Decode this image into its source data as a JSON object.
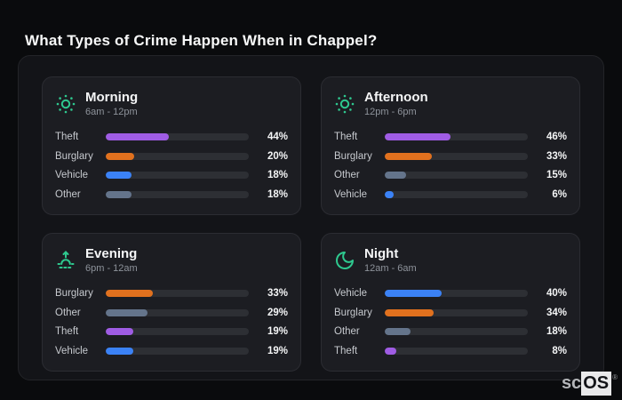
{
  "page_title": "What Types of Crime Happen When in Chappel?",
  "brand": {
    "prefix": "sc",
    "suffix": "OS",
    "registered_mark": "®"
  },
  "colors": {
    "accent_green": "#2ec98f",
    "bar_track": "#2d2f34",
    "background": "#0a0b0d",
    "board_background": "#131418",
    "panel_background": "#1c1d22"
  },
  "category_colors": {
    "Theft": "#9f5ce4",
    "Burglary": "#e1711e",
    "Vehicle": "#3b82f6",
    "Other": "#64748b"
  },
  "chart_data": [
    {
      "type": "bar",
      "title": "Morning",
      "subtitle": "6am - 12pm",
      "icon": "sun-icon",
      "categories": [
        "Theft",
        "Burglary",
        "Vehicle",
        "Other"
      ],
      "values": [
        44,
        20,
        18,
        18
      ],
      "value_labels": [
        "44%",
        "20%",
        "18%",
        "18%"
      ],
      "xlim": [
        0,
        100
      ]
    },
    {
      "type": "bar",
      "title": "Afternoon",
      "subtitle": "12pm - 6pm",
      "icon": "sun-icon",
      "categories": [
        "Theft",
        "Burglary",
        "Other",
        "Vehicle"
      ],
      "values": [
        46,
        33,
        15,
        6
      ],
      "value_labels": [
        "46%",
        "33%",
        "15%",
        "6%"
      ],
      "xlim": [
        0,
        100
      ]
    },
    {
      "type": "bar",
      "title": "Evening",
      "subtitle": "6pm - 12am",
      "icon": "sunrise-icon",
      "categories": [
        "Burglary",
        "Other",
        "Theft",
        "Vehicle"
      ],
      "values": [
        33,
        29,
        19,
        19
      ],
      "value_labels": [
        "33%",
        "29%",
        "19%",
        "19%"
      ],
      "xlim": [
        0,
        100
      ]
    },
    {
      "type": "bar",
      "title": "Night",
      "subtitle": "12am - 6am",
      "icon": "moon-icon",
      "categories": [
        "Vehicle",
        "Burglary",
        "Other",
        "Theft"
      ],
      "values": [
        40,
        34,
        18,
        8
      ],
      "value_labels": [
        "40%",
        "34%",
        "18%",
        "8%"
      ],
      "xlim": [
        0,
        100
      ]
    }
  ]
}
